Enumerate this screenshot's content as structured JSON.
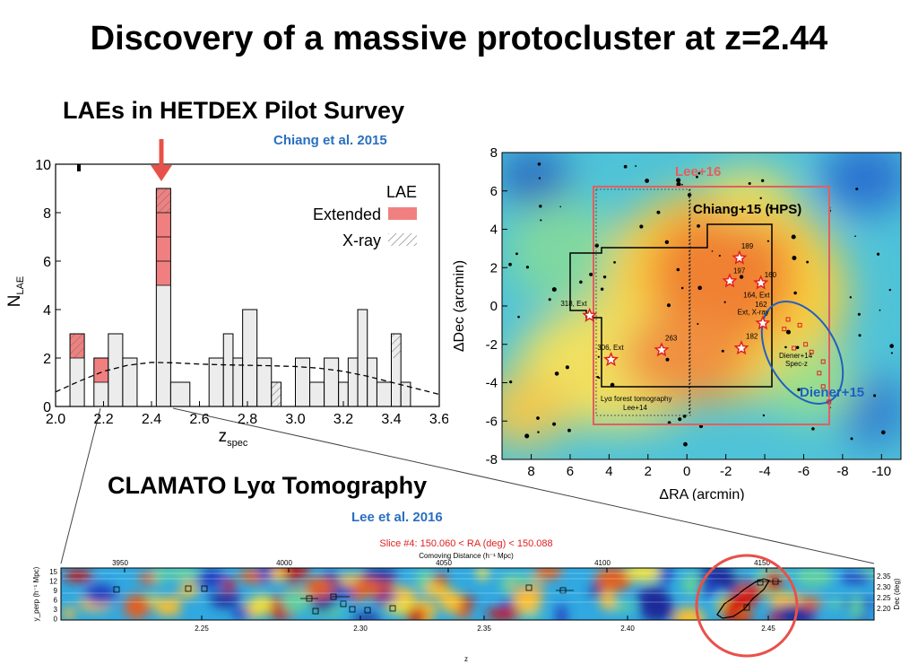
{
  "slide": {
    "title": "Discovery of a massive protocluster at z=2.44",
    "lae_heading": "LAEs in HETDEX Pilot Survey",
    "chiang_citation": "Chiang et al. 2015",
    "clamato_heading": "CLAMATO Lyα Tomography",
    "lee_citation": "Lee et al. 2016"
  },
  "colors": {
    "accent_red": "#e8514a",
    "citation_blue": "#2a6fc0",
    "extended_fill": "#f08080",
    "hist_fill": "#ececec"
  },
  "histogram": {
    "ylabel": "N",
    "ylabel_sub": "LAE",
    "xlabel": "z",
    "xlabel_sub": "spec",
    "legend_title": "LAE",
    "legend_extended": "Extended",
    "legend_xray": "X-ray",
    "xticks": [
      "2.0",
      "2.2",
      "2.4",
      "2.6",
      "2.8",
      "3.0",
      "3.2",
      "3.4",
      "3.6"
    ],
    "yticks": [
      "0",
      "2",
      "4",
      "6",
      "8",
      "10"
    ]
  },
  "map": {
    "xlabel": "ΔRA  (arcmin)",
    "ylabel": "ΔDec  (arcmin)",
    "xticks": [
      "8",
      "6",
      "4",
      "2",
      "0",
      "-2",
      "-4",
      "-6",
      "-8",
      "-10"
    ],
    "yticks": [
      "8",
      "6",
      "4",
      "2",
      "0",
      "-2",
      "-4",
      "-6",
      "-8"
    ],
    "label_lee16": "Lee+16",
    "label_chiang15": "Chiang+15 (HPS)",
    "label_diener15": "Diener+15",
    "label_tomography_1": "Lyα forest tomography",
    "label_tomography_2": "Lee+14",
    "label_diener14_1": "Diener+14",
    "label_diener14_2": "Spec-z",
    "star_labels": [
      "318, Ext",
      "306, Ext",
      "263",
      "189",
      "197",
      "160",
      "164, Ext",
      "162",
      "Ext, X-ray",
      "182"
    ]
  },
  "clamato": {
    "slice_label": "Slice #4: 150.060 < RA (deg) < 150.088",
    "top_axis_label": "Comoving Distance (h⁻¹ Mpc)",
    "top_ticks": [
      "3950",
      "4000",
      "4050",
      "4100",
      "4150"
    ],
    "bottom_ticks": [
      "2.25",
      "2.30",
      "2.35",
      "2.40",
      "2.45"
    ],
    "bottom_axis_label": "z",
    "left_axis_label": "y_perp (h⁻¹ Mpc)",
    "left_ticks": [
      "15",
      "12",
      "9",
      "6",
      "3",
      "0"
    ],
    "right_axis_label": "Dec (deg)",
    "right_ticks": [
      "2.35",
      "2.30",
      "2.25",
      "2.20"
    ]
  },
  "chart_data": {
    "type": "bar",
    "title": "",
    "xlabel": "z_spec",
    "ylabel": "N_LAE",
    "xlim": [
      2.0,
      3.6
    ],
    "ylim": [
      0,
      10
    ],
    "bins": [
      {
        "x0": 2.06,
        "x1": 2.12,
        "n": 3,
        "extended": 1,
        "xray": 1
      },
      {
        "x0": 2.16,
        "x1": 2.22,
        "n": 2,
        "extended": 1,
        "xray": 0
      },
      {
        "x0": 2.22,
        "x1": 2.28,
        "n": 3,
        "extended": 0,
        "xray": 0
      },
      {
        "x0": 2.28,
        "x1": 2.34,
        "n": 2,
        "extended": 0,
        "xray": 0
      },
      {
        "x0": 2.42,
        "x1": 2.48,
        "n": 9,
        "extended": 4,
        "xray": 1
      },
      {
        "x0": 2.48,
        "x1": 2.56,
        "n": 1,
        "extended": 0,
        "xray": 0
      },
      {
        "x0": 2.64,
        "x1": 2.7,
        "n": 2,
        "extended": 0,
        "xray": 0
      },
      {
        "x0": 2.7,
        "x1": 2.74,
        "n": 3,
        "extended": 0,
        "xray": 0
      },
      {
        "x0": 2.74,
        "x1": 2.78,
        "n": 2,
        "extended": 0,
        "xray": 0
      },
      {
        "x0": 2.78,
        "x1": 2.84,
        "n": 4,
        "extended": 0,
        "xray": 0
      },
      {
        "x0": 2.84,
        "x1": 2.9,
        "n": 2,
        "extended": 0,
        "xray": 0
      },
      {
        "x0": 2.9,
        "x1": 2.94,
        "n": 1,
        "extended": 0,
        "xray": 1
      },
      {
        "x0": 3.0,
        "x1": 3.06,
        "n": 2,
        "extended": 0,
        "xray": 0
      },
      {
        "x0": 3.06,
        "x1": 3.12,
        "n": 1,
        "extended": 0,
        "xray": 0
      },
      {
        "x0": 3.12,
        "x1": 3.18,
        "n": 2,
        "extended": 0,
        "xray": 0
      },
      {
        "x0": 3.18,
        "x1": 3.22,
        "n": 1,
        "extended": 0,
        "xray": 0
      },
      {
        "x0": 3.22,
        "x1": 3.26,
        "n": 2,
        "extended": 0,
        "xray": 0
      },
      {
        "x0": 3.26,
        "x1": 3.3,
        "n": 4,
        "extended": 0,
        "xray": 0
      },
      {
        "x0": 3.3,
        "x1": 3.34,
        "n": 2,
        "extended": 0,
        "xray": 0
      },
      {
        "x0": 3.34,
        "x1": 3.4,
        "n": 1,
        "extended": 0,
        "xray": 0
      },
      {
        "x0": 3.4,
        "x1": 3.44,
        "n": 3,
        "extended": 0,
        "xray": 1
      },
      {
        "x0": 3.44,
        "x1": 3.48,
        "n": 1,
        "extended": 0,
        "xray": 0
      }
    ],
    "smooth_curve": {
      "x": [
        2.0,
        2.1,
        2.2,
        2.3,
        2.4,
        2.5,
        2.6,
        2.7,
        2.8,
        2.9,
        3.0,
        3.1,
        3.2,
        3.3,
        3.4,
        3.5,
        3.6
      ],
      "y": [
        0.6,
        1.05,
        1.45,
        1.7,
        1.82,
        1.8,
        1.75,
        1.72,
        1.7,
        1.68,
        1.65,
        1.58,
        1.45,
        1.25,
        1.0,
        0.75,
        0.5
      ]
    }
  }
}
